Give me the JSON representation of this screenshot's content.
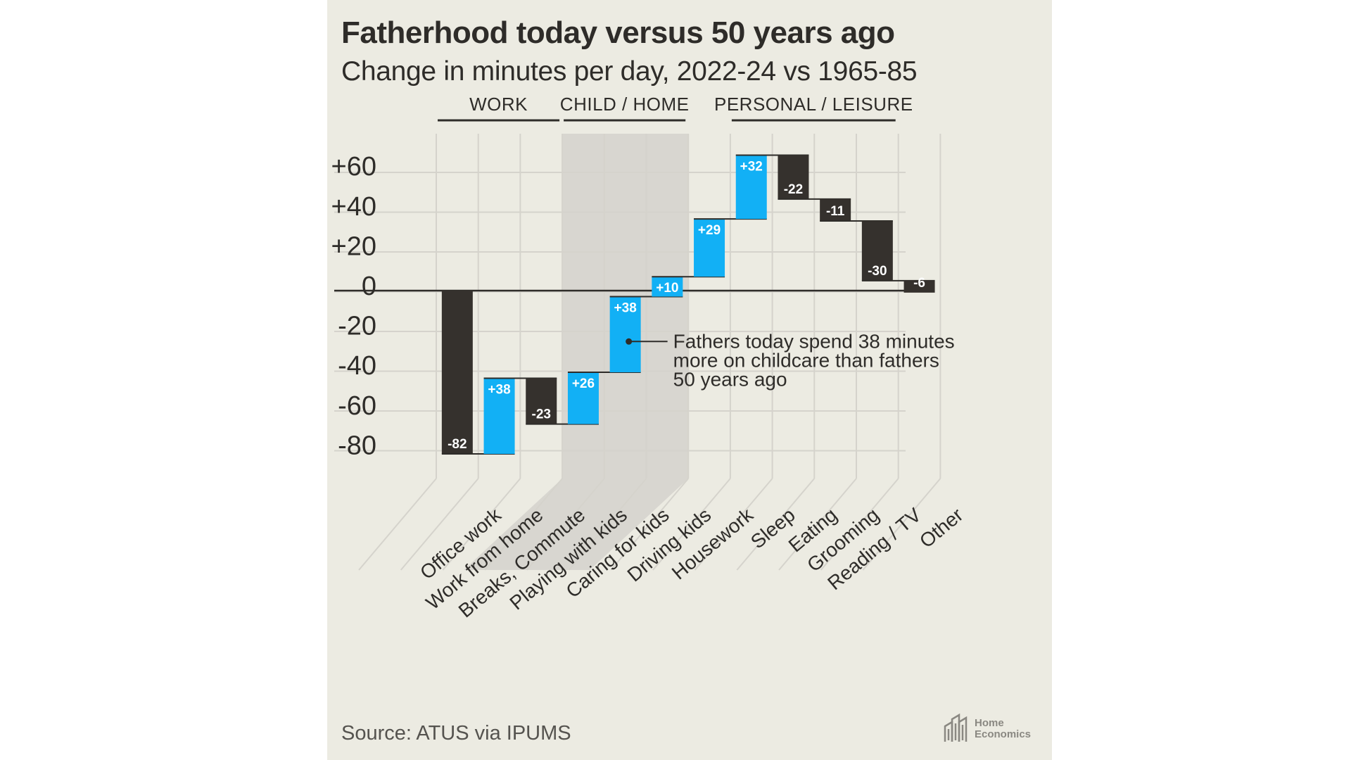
{
  "title": "Fatherhood today versus 50 years ago",
  "subtitle": "Change in minutes per day, 2022-24 vs 1965-85",
  "source": "Source: ATUS via IPUMS",
  "logo": {
    "line1": "Home",
    "line2": "Economics"
  },
  "colors": {
    "increase": "#12b0f5",
    "decrease": "#35312d",
    "background": "#ecebe2",
    "highlight": "#d8d6d0",
    "grid": "#d5d3cc",
    "text": "#2e2c29"
  },
  "chart_data": {
    "type": "bar",
    "subtype": "waterfall",
    "title": "Fatherhood today versus 50 years ago",
    "subtitle": "Change in minutes per day, 2022-24 vs 1965-85",
    "ylim": [
      -80,
      60
    ],
    "yticks": [
      "+60",
      "+40",
      "+20",
      "0",
      "-20",
      "-40",
      "-60",
      "-80"
    ],
    "ytick_values": [
      60,
      40,
      20,
      0,
      -20,
      -40,
      -60,
      -80
    ],
    "grid": true,
    "groups": [
      {
        "label": "WORK",
        "categories": [
          "Office work",
          "Work from home",
          "Breaks, Commute"
        ]
      },
      {
        "label": "CHILD / HOME",
        "categories": [
          "Playing with kids",
          "Caring for kids",
          "Driving kids"
        ],
        "highlighted": true
      },
      {
        "label": "PERSONAL / LEISURE",
        "categories": [
          "Sleep",
          "Eating",
          "Grooming",
          "Reading / TV"
        ]
      }
    ],
    "categories": [
      "Office work",
      "Work from home",
      "Breaks, Commute",
      "Playing with kids",
      "Caring for kids",
      "Driving kids",
      "Housework",
      "Sleep",
      "Eating",
      "Grooming",
      "Reading / TV",
      "Other"
    ],
    "values": [
      -82,
      38,
      -23,
      26,
      38,
      10,
      29,
      32,
      -22,
      -11,
      -30,
      -6
    ],
    "value_labels": [
      "-82",
      "+38",
      "-23",
      "+26",
      "+38",
      "+10",
      "+29",
      "+32",
      "-22",
      "-11",
      "-30",
      "-6"
    ],
    "annotation": {
      "category": "Caring for kids",
      "lines": [
        "Fathers today spend 38 minutes",
        "more on childcare than fathers",
        "50 years ago"
      ]
    }
  }
}
